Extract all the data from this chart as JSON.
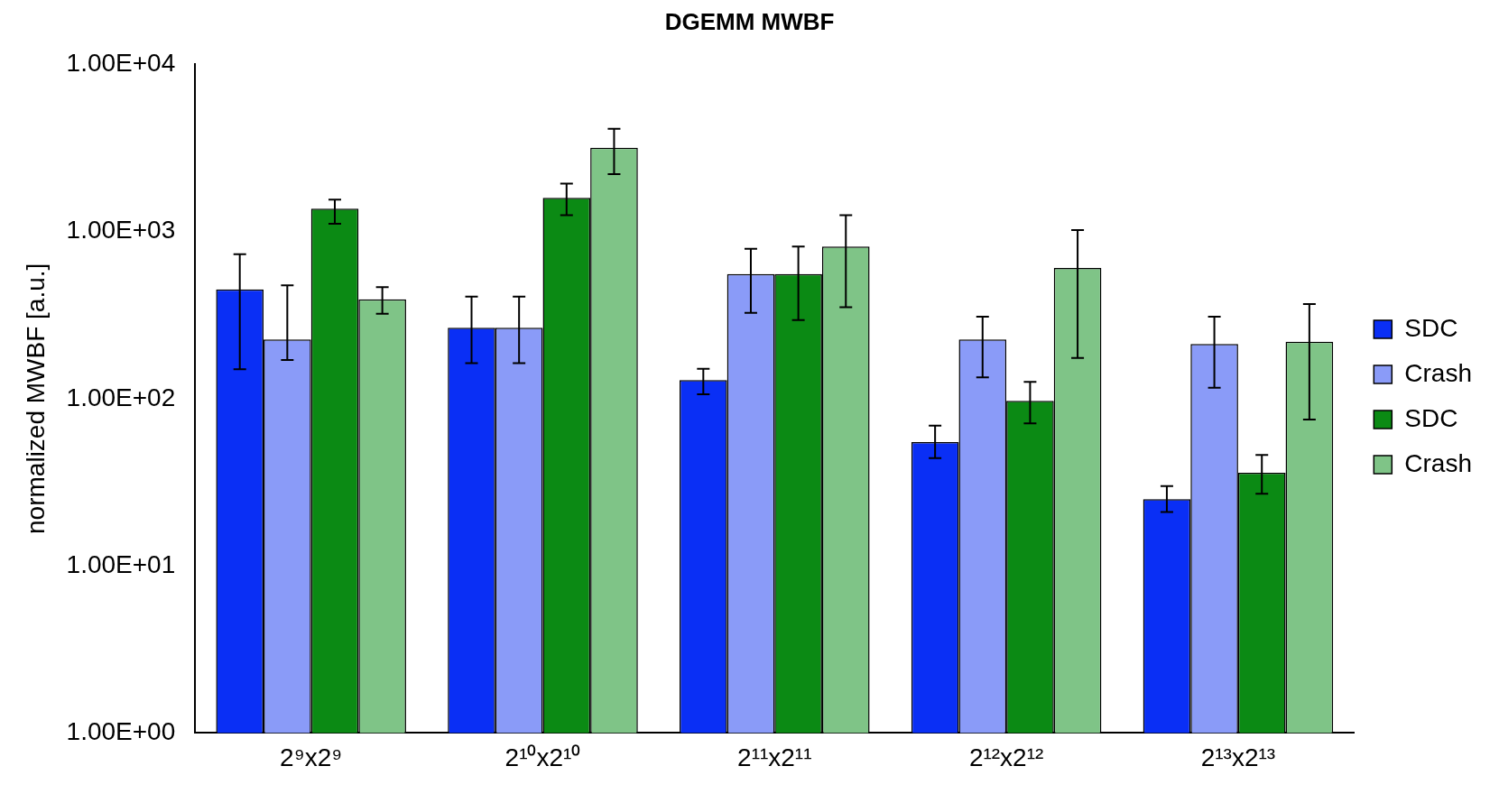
{
  "chart_data": {
    "type": "bar",
    "title": "DGEMM MWBF",
    "ylabel": "normalized MWBF [a.u.]",
    "categories": [
      "2⁹x2⁹",
      "2¹⁰x2¹⁰",
      "2¹¹x2¹¹",
      "2¹²x2¹²",
      "2¹³x2¹³"
    ],
    "log": true,
    "ylim": [
      1,
      10000
    ],
    "yticks": [
      {
        "value": 1,
        "label": "1.00E+00"
      },
      {
        "value": 10,
        "label": "1.00E+01"
      },
      {
        "value": 100,
        "label": "1.00E+02"
      },
      {
        "value": 1000,
        "label": "1.00E+03"
      },
      {
        "value": 10000,
        "label": "1.00E+04"
      }
    ],
    "legend": "right",
    "series": [
      {
        "name": "SDC",
        "color": "#0a2ff5",
        "values": [
          450,
          265,
          129,
          55,
          25
        ],
        "errors": [
          [
            150,
            730
          ],
          [
            163,
            407
          ],
          [
            106,
            151
          ],
          [
            44,
            69
          ],
          [
            21,
            30
          ]
        ]
      },
      {
        "name": "Crash",
        "color": "#8a9bf8",
        "values": [
          226,
          265,
          556,
          226,
          212
        ],
        "errors": [
          [
            170,
            476
          ],
          [
            163,
            407
          ],
          [
            326,
            787
          ],
          [
            134,
            309
          ],
          [
            116,
            309
          ]
        ]
      },
      {
        "name": "SDC",
        "color": "#0b8a14",
        "values": [
          1370,
          1590,
          556,
          97,
          36
        ],
        "errors": [
          [
            1110,
            1550
          ],
          [
            1250,
            1930
          ],
          [
            295,
            813
          ],
          [
            71,
            126
          ],
          [
            27,
            46
          ]
        ]
      },
      {
        "name": "Crash",
        "color": "#7fc487",
        "values": [
          392,
          3170,
          813,
          604,
          219
        ],
        "errors": [
          [
            322,
            464
          ],
          [
            2200,
            4110
          ],
          [
            352,
            1250
          ],
          [
            175,
            1020
          ],
          [
            75,
            368
          ]
        ]
      }
    ]
  }
}
